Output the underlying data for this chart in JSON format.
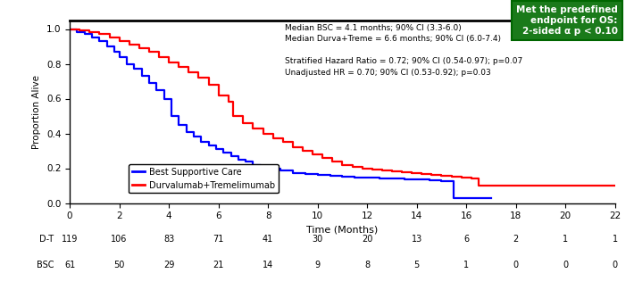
{
  "title": "",
  "xlabel": "Time (Months)",
  "ylabel": "Proportion Alive",
  "xlim": [
    0,
    22
  ],
  "ylim": [
    0,
    1.05
  ],
  "xticks": [
    0,
    2,
    4,
    6,
    8,
    10,
    12,
    14,
    16,
    18,
    20,
    22
  ],
  "yticks": [
    0,
    0.2,
    0.4,
    0.6,
    0.8,
    1
  ],
  "bsc_color": "#0000FF",
  "dt_color": "#FF0000",
  "box_color": "#1a7a1a",
  "box_text": "Met the predefined\nendpoint for OS:\n2-sided α p < 0.10",
  "annotation_text": "Median BSC = 4.1 months; 90% CI (3.3-6.0)\nMedian Durva+Treme = 6.6 months; 90% CI (6.0-7.4)\n\nStratified Hazard Ratio = 0.72; 90% CI (0.54-0.97); p=0.07\nUnadjusted HR = 0.70; 90% CI (0.53-0.92); p=0.03",
  "legend_labels": [
    "Best Supportive Care",
    "Durvalumab+Tremelimumab"
  ],
  "at_risk_dt": [
    119,
    106,
    83,
    71,
    41,
    30,
    20,
    13,
    6,
    2,
    1,
    1
  ],
  "at_risk_bsc": [
    61,
    50,
    29,
    21,
    14,
    9,
    8,
    5,
    1,
    0,
    0,
    0
  ],
  "at_risk_times": [
    0,
    2,
    4,
    6,
    8,
    10,
    12,
    14,
    16,
    18,
    20,
    22
  ],
  "bsc_times": [
    0,
    0.3,
    0.6,
    0.9,
    1.2,
    1.5,
    1.8,
    2.0,
    2.3,
    2.6,
    2.9,
    3.2,
    3.5,
    3.8,
    4.1,
    4.4,
    4.7,
    5.0,
    5.3,
    5.6,
    5.9,
    6.2,
    6.5,
    6.8,
    7.1,
    7.4,
    7.7,
    8.0,
    8.5,
    9.0,
    9.5,
    10.0,
    10.5,
    11.0,
    11.5,
    12.0,
    12.5,
    13.0,
    13.5,
    14.0,
    14.5,
    15.0,
    15.5,
    16.0,
    16.5,
    17.0
  ],
  "bsc_surv": [
    1.0,
    0.98,
    0.97,
    0.95,
    0.93,
    0.9,
    0.87,
    0.84,
    0.8,
    0.77,
    0.73,
    0.69,
    0.65,
    0.6,
    0.5,
    0.45,
    0.41,
    0.38,
    0.35,
    0.33,
    0.31,
    0.29,
    0.27,
    0.25,
    0.24,
    0.22,
    0.21,
    0.2,
    0.185,
    0.17,
    0.165,
    0.16,
    0.155,
    0.15,
    0.148,
    0.145,
    0.143,
    0.14,
    0.138,
    0.135,
    0.13,
    0.125,
    0.03,
    0.03,
    0.03,
    0.03
  ],
  "dt_times": [
    0,
    0.4,
    0.8,
    1.2,
    1.6,
    2.0,
    2.4,
    2.8,
    3.2,
    3.6,
    4.0,
    4.4,
    4.8,
    5.2,
    5.6,
    6.0,
    6.4,
    6.6,
    7.0,
    7.4,
    7.8,
    8.2,
    8.6,
    9.0,
    9.4,
    9.8,
    10.2,
    10.6,
    11.0,
    11.4,
    11.8,
    12.2,
    12.6,
    13.0,
    13.4,
    13.8,
    14.2,
    14.6,
    15.0,
    15.4,
    15.8,
    16.2,
    16.5,
    17.0,
    22.0
  ],
  "dt_surv": [
    1.0,
    0.99,
    0.98,
    0.97,
    0.95,
    0.93,
    0.91,
    0.89,
    0.87,
    0.84,
    0.81,
    0.78,
    0.75,
    0.72,
    0.68,
    0.62,
    0.58,
    0.5,
    0.46,
    0.43,
    0.4,
    0.37,
    0.35,
    0.32,
    0.3,
    0.28,
    0.26,
    0.24,
    0.22,
    0.21,
    0.2,
    0.19,
    0.185,
    0.18,
    0.175,
    0.17,
    0.165,
    0.16,
    0.155,
    0.15,
    0.145,
    0.14,
    0.1,
    0.1,
    0.1
  ]
}
